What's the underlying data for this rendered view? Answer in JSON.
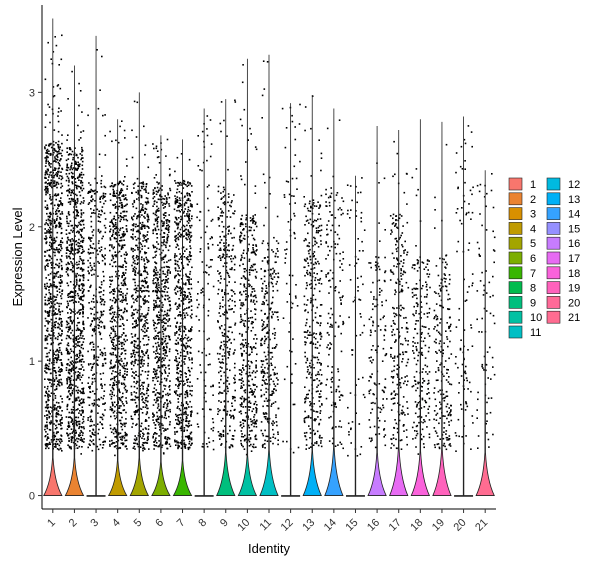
{
  "chart_data": {
    "type": "violin",
    "xlabel": "Identity",
    "ylabel": "Expression Level",
    "ylim": [
      -0.1,
      3.65
    ],
    "yticks": [
      0,
      1,
      2,
      3
    ],
    "grid": false,
    "legend_position": "right",
    "categories": [
      "1",
      "2",
      "3",
      "4",
      "5",
      "6",
      "7",
      "8",
      "9",
      "10",
      "11",
      "12",
      "13",
      "14",
      "15",
      "16",
      "17",
      "18",
      "19",
      "20",
      "21"
    ],
    "colors": [
      "#F8766D",
      "#EA8331",
      "#D89000",
      "#C09B00",
      "#A3A500",
      "#7CAE00",
      "#39B600",
      "#00BB4E",
      "#00BF7D",
      "#00C1A3",
      "#00BFC4",
      "#00BAE0",
      "#00B0F6",
      "#35A2FF",
      "#9590FF",
      "#C77CFF",
      "#E76BF3",
      "#FA62DB",
      "#FF62BC",
      "#FF6A98",
      "#FF6C91"
    ],
    "max_expression": [
      3.55,
      3.2,
      3.42,
      2.8,
      3.0,
      2.68,
      2.65,
      2.88,
      2.95,
      3.25,
      3.28,
      2.92,
      2.98,
      2.88,
      2.38,
      2.75,
      2.72,
      2.8,
      2.78,
      2.82,
      2.42
    ],
    "dense_top": [
      2.65,
      2.6,
      2.35,
      2.35,
      2.35,
      2.3,
      2.35,
      0,
      2.3,
      2.1,
      1.9,
      0,
      2.2,
      2.3,
      0,
      1.8,
      2.1,
      1.8,
      1.8,
      0,
      0
    ],
    "zero_peak_height": [
      0.28,
      0.28,
      0,
      0.26,
      0.28,
      0.25,
      0.26,
      0,
      0.32,
      0.3,
      0.34,
      0,
      0.33,
      0.36,
      0,
      0.32,
      0.36,
      0.33,
      0.35,
      0,
      0.32
    ],
    "point_density": [
      1.0,
      0.95,
      0.4,
      0.7,
      0.65,
      0.7,
      0.7,
      0.1,
      0.35,
      0.45,
      0.3,
      0.05,
      0.35,
      0.15,
      0.05,
      0.12,
      0.25,
      0.2,
      0.2,
      0.08,
      0.06
    ]
  }
}
